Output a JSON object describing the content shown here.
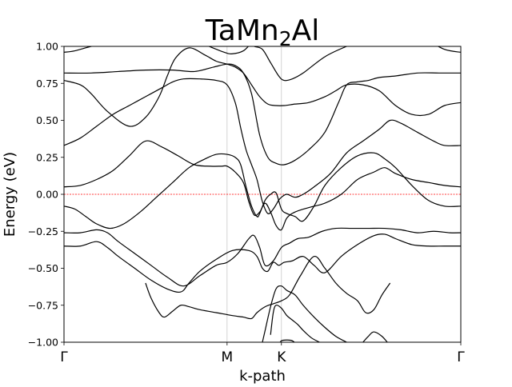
{
  "chart_data": {
    "type": "line",
    "title": "TaMn2Al",
    "title_parts": {
      "base": "TaMn",
      "sub": "2",
      "tail": "Al"
    },
    "xlabel": "k-path",
    "ylabel": "Energy (eV)",
    "ylim": [
      -1.0,
      1.0
    ],
    "xlim": [
      0,
      7.3
    ],
    "x_ticks": [
      {
        "label": "Γ",
        "x": 0
      },
      {
        "label": "M",
        "x": 3.0
      },
      {
        "label": "K",
        "x": 4.0
      },
      {
        "label": "Γ",
        "x": 7.3
      }
    ],
    "y_ticks": [
      {
        "label": "−1.00",
        "y": -1.0
      },
      {
        "label": "−0.75",
        "y": -0.75
      },
      {
        "label": "−0.50",
        "y": -0.5
      },
      {
        "label": "−0.25",
        "y": -0.25
      },
      {
        "label": "0.00",
        "y": 0.0
      },
      {
        "label": "0.25",
        "y": 0.25
      },
      {
        "label": "0.50",
        "y": 0.5
      },
      {
        "label": "0.75",
        "y": 0.75
      },
      {
        "label": "1.00",
        "y": 1.0
      }
    ],
    "vertical_lines": [
      3.0,
      4.0
    ],
    "fermi_level": 0.0,
    "colors": {
      "band": "#000000",
      "fermi": "#ff0000",
      "vline": "#c8c8c8"
    },
    "series": [
      {
        "x": [
          0,
          0.2,
          0.5,
          0.8,
          1.1,
          1.5,
          1.85,
          2.3,
          2.6,
          2.95,
          3.1,
          3.3,
          3.45,
          3.5,
          3.65,
          3.8,
          3.95,
          4.05,
          4.2,
          4.4,
          4.8,
          5.2,
          5.6,
          6.0,
          6.6,
          7.0,
          7.3
        ],
        "y": [
          0.96,
          0.97,
          1.0,
          1.02,
          1.05,
          1.08,
          1.1,
          1.05,
          1.01,
          0.96,
          0.95,
          0.97,
          1.02,
          1.0,
          0.98,
          0.89,
          0.8,
          0.77,
          0.78,
          0.82,
          0.93,
          1.0,
          1.05,
          1.1,
          1.05,
          0.98,
          0.96
        ]
      },
      {
        "x": [
          0,
          0.5,
          1.0,
          1.5,
          2.0,
          2.4,
          2.75,
          3.0,
          3.15,
          3.3,
          3.45,
          3.6,
          3.75,
          3.9,
          4.05,
          4.25,
          4.5,
          4.8,
          5.05,
          5.2,
          5.4,
          5.6,
          5.8,
          6.1,
          6.5,
          6.9,
          7.3
        ],
        "y": [
          0.82,
          0.82,
          0.83,
          0.84,
          0.84,
          0.83,
          0.86,
          0.88,
          0.87,
          0.82,
          0.68,
          0.4,
          0.25,
          0.21,
          0.2,
          0.23,
          0.3,
          0.42,
          0.62,
          0.74,
          0.76,
          0.77,
          0.79,
          0.8,
          0.82,
          0.82,
          0.82
        ]
      },
      {
        "x": [
          0,
          0.3,
          0.5,
          0.8,
          1.2,
          1.5,
          1.75,
          1.9,
          2.05,
          2.3,
          2.6,
          2.8,
          3.0,
          3.15,
          3.3,
          3.45,
          3.6,
          3.75,
          3.9,
          4.05,
          4.25,
          4.5,
          4.8,
          5.0,
          5.2,
          5.5,
          5.8,
          6.1,
          6.4,
          6.7,
          7.0,
          7.3
        ],
        "y": [
          0.77,
          0.74,
          0.68,
          0.56,
          0.46,
          0.52,
          0.66,
          0.8,
          0.92,
          0.99,
          0.94,
          0.9,
          0.88,
          0.86,
          0.82,
          0.74,
          0.66,
          0.61,
          0.6,
          0.6,
          0.61,
          0.62,
          0.66,
          0.7,
          0.74,
          0.74,
          0.7,
          0.6,
          0.54,
          0.54,
          0.6,
          0.62
        ]
      },
      {
        "x": [
          0,
          0.3,
          0.6,
          0.9,
          1.2,
          1.5,
          1.8,
          2.0,
          2.2,
          2.5,
          2.8,
          3.0,
          3.15,
          3.25,
          3.35,
          3.45,
          3.55,
          3.65,
          3.75,
          3.85,
          3.95,
          4.0,
          4.1,
          4.25,
          4.4,
          4.6,
          4.9,
          5.2,
          5.5,
          5.8,
          6.0,
          6.2,
          6.5,
          6.8,
          7.0,
          7.3
        ],
        "y": [
          0.33,
          0.38,
          0.46,
          0.54,
          0.6,
          0.66,
          0.72,
          0.76,
          0.78,
          0.78,
          0.77,
          0.74,
          0.62,
          0.45,
          0.3,
          0.2,
          0.1,
          -0.05,
          -0.13,
          -0.1,
          -0.04,
          -0.02,
          0.0,
          -0.02,
          0.0,
          0.05,
          0.14,
          0.28,
          0.36,
          0.44,
          0.5,
          0.48,
          0.42,
          0.36,
          0.33,
          0.33
        ]
      },
      {
        "x": [
          0,
          0.3,
          0.6,
          0.9,
          1.2,
          1.5,
          1.8,
          2.1,
          2.4,
          2.7,
          2.9,
          3.0,
          3.15,
          3.3,
          3.4,
          3.5,
          3.6,
          3.7,
          3.8,
          3.9,
          4.0,
          4.1,
          4.25,
          4.5,
          4.8,
          5.1,
          5.4,
          5.7,
          5.9,
          6.1,
          6.4,
          6.7,
          7.0,
          7.3
        ],
        "y": [
          0.05,
          0.06,
          0.1,
          0.16,
          0.26,
          0.36,
          0.32,
          0.26,
          0.2,
          0.19,
          0.19,
          0.19,
          0.15,
          0.08,
          -0.05,
          -0.14,
          -0.12,
          -0.06,
          -0.12,
          -0.21,
          -0.24,
          -0.16,
          -0.12,
          -0.09,
          -0.06,
          0.0,
          0.1,
          0.15,
          0.18,
          0.14,
          0.1,
          0.08,
          0.06,
          0.05
        ]
      },
      {
        "x": [
          0,
          0.2,
          0.4,
          0.6,
          0.85,
          1.1,
          1.4,
          1.7,
          2.0,
          2.3,
          2.6,
          2.8,
          3.0,
          3.15,
          3.25,
          3.35,
          3.45,
          3.55,
          3.6,
          3.7,
          3.8,
          3.9,
          4.0,
          4.1,
          4.25,
          4.4,
          4.6,
          4.8,
          5.1,
          5.4,
          5.7,
          5.9,
          6.1,
          6.4,
          6.7,
          7.0,
          7.3
        ],
        "y": [
          -0.08,
          -0.1,
          -0.15,
          -0.2,
          -0.23,
          -0.2,
          -0.12,
          -0.02,
          0.08,
          0.18,
          0.24,
          0.27,
          0.27,
          0.25,
          0.2,
          0.05,
          -0.08,
          -0.15,
          -0.13,
          -0.04,
          0.0,
          0.01,
          -0.1,
          -0.13,
          -0.15,
          -0.18,
          -0.08,
          0.06,
          0.18,
          0.26,
          0.28,
          0.24,
          0.18,
          0.06,
          -0.04,
          -0.08,
          -0.08
        ]
      },
      {
        "x": [
          0,
          0.3,
          0.6,
          0.8,
          1.0,
          1.3,
          1.6,
          1.9,
          2.2,
          2.5,
          2.8,
          3.0,
          3.2,
          3.4,
          3.5,
          3.6,
          3.7,
          3.85,
          4.0,
          4.15,
          4.3,
          4.5,
          4.75,
          5.0,
          5.3,
          5.6,
          5.9,
          6.2,
          6.5,
          6.8,
          7.1,
          7.3
        ],
        "y": [
          -0.26,
          -0.26,
          -0.24,
          -0.26,
          -0.32,
          -0.4,
          -0.48,
          -0.56,
          -0.62,
          -0.55,
          -0.48,
          -0.46,
          -0.4,
          -0.3,
          -0.28,
          -0.36,
          -0.48,
          -0.45,
          -0.36,
          -0.33,
          -0.3,
          -0.29,
          -0.25,
          -0.23,
          -0.23,
          -0.23,
          -0.23,
          -0.24,
          -0.26,
          -0.25,
          -0.26,
          -0.26
        ]
      },
      {
        "x": [
          0,
          0.3,
          0.6,
          0.8,
          1.0,
          1.3,
          1.6,
          1.9,
          2.15,
          2.3,
          2.5,
          2.8,
          3.1,
          3.4,
          3.55,
          3.65,
          3.75,
          3.85,
          3.95,
          4.05,
          4.2,
          4.4,
          4.6,
          4.8,
          5.1,
          5.4,
          5.7,
          5.9,
          6.1,
          6.4,
          6.7,
          7.0,
          7.3
        ],
        "y": [
          -0.35,
          -0.35,
          -0.32,
          -0.36,
          -0.42,
          -0.5,
          -0.58,
          -0.64,
          -0.66,
          -0.6,
          -0.52,
          -0.44,
          -0.38,
          -0.38,
          -0.42,
          -0.5,
          -0.52,
          -0.46,
          -0.48,
          -0.46,
          -0.45,
          -0.42,
          -0.48,
          -0.53,
          -0.42,
          -0.34,
          -0.28,
          -0.27,
          -0.3,
          -0.34,
          -0.35,
          -0.35,
          -0.35
        ]
      },
      {
        "x": [
          1.5,
          1.6,
          1.75,
          1.85,
          2.0,
          2.15,
          2.3,
          2.5,
          2.8,
          3.1,
          3.3,
          3.45,
          3.55,
          3.7,
          3.85,
          4.0,
          4.15,
          4.35,
          4.6,
          4.8,
          5.0,
          5.2,
          5.4,
          5.55,
          5.7,
          5.85,
          6.0
        ],
        "y": [
          -0.6,
          -0.7,
          -0.8,
          -0.83,
          -0.79,
          -0.75,
          -0.76,
          -0.78,
          -0.8,
          -0.82,
          -0.83,
          -0.84,
          -0.8,
          -0.76,
          -0.74,
          -0.72,
          -0.68,
          -0.55,
          -0.42,
          -0.5,
          -0.6,
          -0.67,
          -0.72,
          -0.8,
          -0.78,
          -0.68,
          -0.6
        ]
      },
      {
        "x": [
          3.65,
          3.7,
          3.8,
          3.9,
          4.0,
          4.1,
          4.25,
          4.4,
          4.6,
          4.8,
          5.0,
          5.2
        ],
        "y": [
          -1.0,
          -0.92,
          -0.76,
          -0.64,
          -0.62,
          -0.65,
          -0.68,
          -0.75,
          -0.83,
          -0.9,
          -0.96,
          -1.0
        ]
      },
      {
        "x": [
          3.8,
          3.85,
          3.9,
          4.0,
          4.1,
          4.2,
          4.3,
          4.4,
          4.55,
          4.7
        ],
        "y": [
          -0.95,
          -0.8,
          -0.75,
          -0.77,
          -0.82,
          -0.85,
          -0.88,
          -0.92,
          -0.97,
          -1.0
        ]
      },
      {
        "x": [
          5.5,
          5.6,
          5.7,
          5.85,
          6.0,
          6.15
        ],
        "y": [
          -1.0,
          -0.96,
          -0.93,
          -0.96,
          -1.02,
          -1.05
        ]
      },
      {
        "x": [
          3.95,
          4.0,
          4.1,
          4.2,
          4.3
        ],
        "y": [
          -1.02,
          -0.99,
          -0.985,
          -0.99,
          -1.02
        ]
      }
    ]
  }
}
